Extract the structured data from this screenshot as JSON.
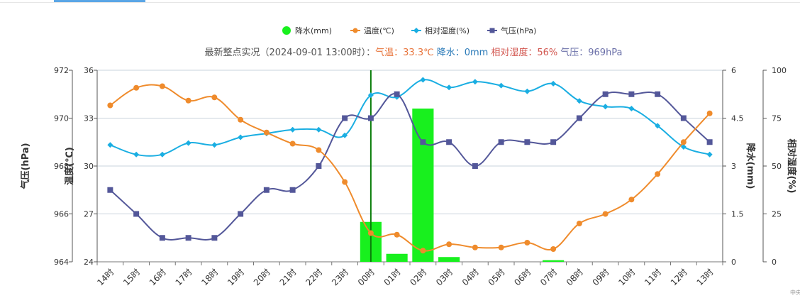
{
  "chart_data": {
    "type": "line",
    "subtitle": {
      "prefix": "最新整点实况（2024-09-01 13:00时）：",
      "temp_label": "气温：",
      "temp_value": "33.3℃",
      "precip_label": "降水：",
      "precip_value": "0mm",
      "humidity_label": "相对湿度：",
      "humidity_value": "56%",
      "pressure_label": "气压：",
      "pressure_value": "969hPa"
    },
    "legend": [
      {
        "key": "precip",
        "label": "降水(mm)",
        "color": "#18f01e",
        "symbol": "circle"
      },
      {
        "key": "temp",
        "label": "温度(℃)",
        "color": "#ef8b2c",
        "symbol": "line-circle"
      },
      {
        "key": "humidity",
        "label": "相对湿度(%)",
        "color": "#1aaee2",
        "symbol": "line-diamond"
      },
      {
        "key": "pressure",
        "label": "气压(hPa)",
        "color": "#535799",
        "symbol": "line-square"
      }
    ],
    "categories": [
      "14时",
      "15时",
      "16时",
      "17时",
      "18时",
      "19时",
      "20时",
      "21时",
      "22时",
      "23时",
      "00时",
      "01时",
      "02时",
      "03时",
      "04时",
      "05时",
      "06时",
      "07时",
      "08时",
      "09时",
      "10时",
      "11时",
      "12时",
      "13时"
    ],
    "series": [
      {
        "key": "temp",
        "name": "温度(℃)",
        "axis": "temp",
        "type": "line",
        "values": [
          33.8,
          34.9,
          35.0,
          34.1,
          34.3,
          32.9,
          32.1,
          31.4,
          31.0,
          29.0,
          25.8,
          25.7,
          24.7,
          25.1,
          24.9,
          24.9,
          25.2,
          24.8,
          26.4,
          27.0,
          27.9,
          29.5,
          31.5,
          33.3
        ]
      },
      {
        "key": "humidity",
        "name": "相对湿度(%)",
        "axis": "humidity",
        "type": "line",
        "values": [
          61,
          56,
          56,
          62,
          61,
          65,
          67,
          69,
          69,
          66,
          87,
          86,
          95,
          91,
          94,
          92,
          89,
          93,
          84,
          81,
          80,
          71,
          60,
          56
        ]
      },
      {
        "key": "pressure",
        "name": "气压(hPa)",
        "axis": "pressure",
        "type": "line",
        "values": [
          967,
          966,
          965,
          965,
          965,
          966,
          967,
          967,
          968,
          970,
          970,
          971,
          969,
          969,
          968,
          969,
          969,
          969,
          970,
          971,
          971,
          971,
          970,
          969
        ]
      },
      {
        "key": "precip",
        "name": "降水(mm)",
        "axis": "precip",
        "type": "bar",
        "values": [
          0,
          0,
          0,
          0,
          0,
          0,
          0,
          0,
          0,
          0,
          1.25,
          0.25,
          4.8,
          0.15,
          0,
          0,
          0,
          0.05,
          0,
          0,
          0,
          0,
          0,
          0
        ]
      }
    ],
    "axes": {
      "pressure": {
        "label": "气压(hPa)",
        "range": [
          964,
          972
        ],
        "ticks": [
          964,
          966,
          968,
          970,
          972
        ],
        "side": "left-outer"
      },
      "temp": {
        "label": "温度(℃)",
        "range": [
          24,
          36
        ],
        "ticks": [
          24,
          27,
          30,
          33,
          36
        ],
        "side": "left-inner"
      },
      "precip": {
        "label": "降水(mm)",
        "range": [
          0,
          6
        ],
        "ticks": [
          "0",
          "1.5",
          "3",
          "4.5",
          "6"
        ],
        "side": "right-inner"
      },
      "humidity": {
        "label": "相对湿度(%)",
        "range": [
          0,
          100
        ],
        "ticks": [
          0,
          25,
          50,
          75,
          100
        ],
        "side": "right-outer"
      }
    },
    "marker_line": {
      "category": "00时",
      "color": "#0a7d0a"
    },
    "grid": true,
    "corner_text": "中央"
  }
}
